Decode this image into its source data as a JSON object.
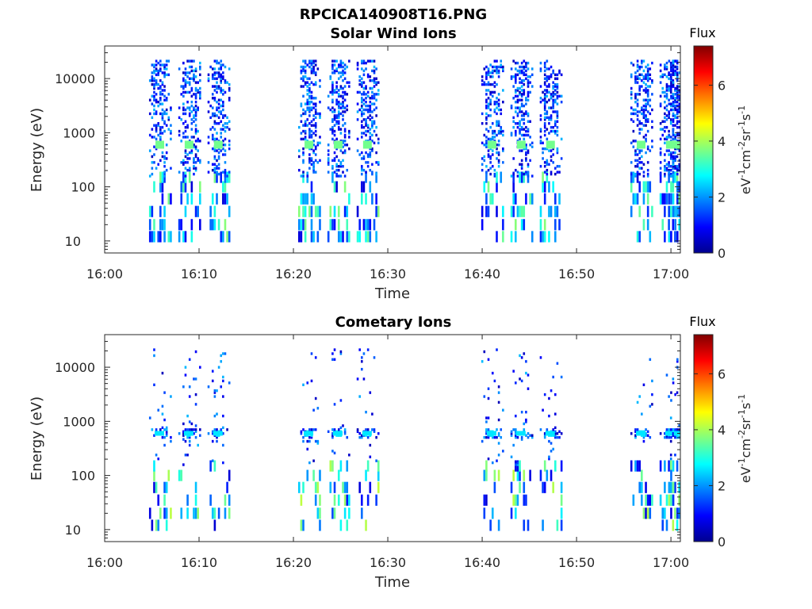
{
  "figure": {
    "filename": "RPCICA140908T16.PNG"
  },
  "chart_data": [
    {
      "type": "heatmap",
      "title": "Solar Wind Ions",
      "xlabel": "Time",
      "ylabel": "Energy (eV)",
      "x_ticks": [
        "16:00",
        "16:10",
        "16:20",
        "16:30",
        "16:40",
        "16:50",
        "17:00"
      ],
      "y_ticks": [
        "10",
        "100",
        "1000",
        "10000"
      ],
      "y_scale": "log",
      "ylim": [
        6,
        40000
      ],
      "xlim_minutes": [
        0,
        61
      ],
      "colorbar": {
        "title": "Flux",
        "label": "eV-1cm-2sr-1s-1",
        "ticks": [
          "0",
          "2",
          "4",
          "6"
        ],
        "range": [
          0,
          7.4
        ],
        "colormap": "jet"
      },
      "scan_times_minutes": [
        5.8,
        8.9,
        12.0,
        21.6,
        24.7,
        27.8,
        41.0,
        44.1,
        47.2,
        56.8,
        59.9,
        60.8
      ],
      "peak_energy_eV": 600,
      "peak_flux": 3.6
    },
    {
      "type": "heatmap",
      "title": "Cometary Ions",
      "xlabel": "Time",
      "ylabel": "Energy (eV)",
      "x_ticks": [
        "16:00",
        "16:10",
        "16:20",
        "16:30",
        "16:40",
        "16:50",
        "17:00"
      ],
      "y_ticks": [
        "10",
        "100",
        "1000",
        "10000"
      ],
      "y_scale": "log",
      "ylim": [
        6,
        40000
      ],
      "xlim_minutes": [
        0,
        61
      ],
      "colorbar": {
        "title": "Flux",
        "label": "eV-1cm-2sr-1s-1",
        "ticks": [
          "0",
          "2",
          "4",
          "6"
        ],
        "range": [
          0,
          7.4
        ],
        "colormap": "jet"
      },
      "scan_times_minutes": [
        5.8,
        8.9,
        12.0,
        21.6,
        24.7,
        27.8,
        41.0,
        44.1,
        47.2,
        56.8,
        59.9,
        60.8
      ],
      "peak_energy_eV": 600,
      "peak_flux": 2.6
    }
  ]
}
